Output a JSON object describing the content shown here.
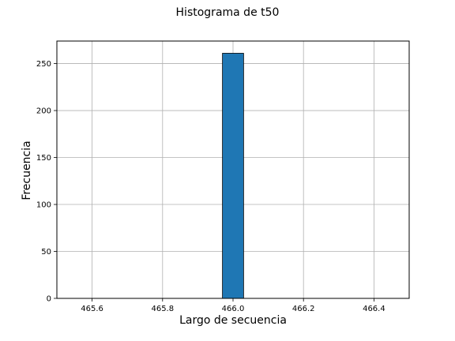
{
  "chart_data": {
    "type": "bar",
    "title": "Histograma de t50",
    "xlabel": "Largo de secuencia",
    "ylabel": "Frecuencia",
    "xlim": [
      465.5,
      466.5
    ],
    "ylim": [
      0,
      274
    ],
    "x_ticks": [
      "465.6",
      "465.8",
      "466.0",
      "466.2",
      "466.4"
    ],
    "y_ticks": [
      "0",
      "50",
      "100",
      "150",
      "200",
      "250"
    ],
    "grid": true,
    "bars": [
      {
        "x_start": 465.97,
        "x_end": 466.03,
        "value": 261
      }
    ],
    "bar_color": "#1f77b4",
    "edge_color": "#000000"
  }
}
